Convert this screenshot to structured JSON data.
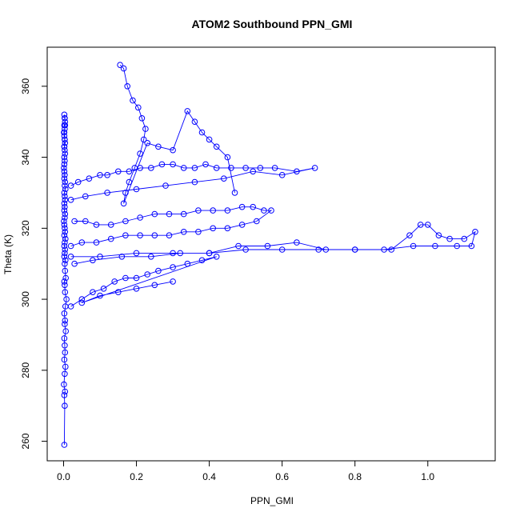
{
  "chart_data": {
    "type": "line",
    "title": "ATOM2 Southbound PPN_GMI",
    "xlabel": "PPN_GMI",
    "ylabel": "Theta (K)",
    "xlim": [
      -0.045,
      1.185
    ],
    "ylim": [
      254.5,
      371
    ],
    "xticks": [
      0.0,
      0.2,
      0.4,
      0.6,
      0.8,
      1.0
    ],
    "xtick_labels": [
      "0.0",
      "0.2",
      "0.4",
      "0.6",
      "0.8",
      "1.0"
    ],
    "yticks": [
      260,
      280,
      300,
      320,
      340,
      360
    ],
    "ytick_labels": [
      "260",
      "280",
      "300",
      "320",
      "340",
      "360"
    ],
    "grid": false,
    "legend": "none",
    "series_color": "#0000ff",
    "marker": "open-circle",
    "series": [
      {
        "x": [
          0.002,
          0.003,
          0.002,
          0.004,
          0.001,
          0.003,
          0.005,
          0.002,
          0.004,
          0.003,
          0.002,
          0.006,
          0.003,
          0.004,
          0.002,
          0.005,
          0.008,
          0.004,
          0.003,
          0.002,
          0.006,
          0.004,
          0.003,
          0.005,
          0.002,
          0.003,
          0.004,
          0.002,
          0.003,
          0.005,
          0.002,
          0.004,
          0.003,
          0.002,
          0.001,
          0.003,
          0.004,
          0.002,
          0.003,
          0.002,
          0.004,
          0.003,
          0.002,
          0.005,
          0.003,
          0.004,
          0.002,
          0.003,
          0.002,
          0.001,
          0.002,
          0.003,
          0.002,
          0.004,
          0.003,
          0.002,
          0.004,
          0.003,
          0.002,
          0.001,
          0.003,
          0.002,
          0.004,
          0.003,
          0.002,
          0.003,
          0.004,
          0.002,
          0.003,
          0.002
        ],
        "y": [
          259,
          270,
          273,
          274,
          276,
          279,
          281,
          283,
          285,
          287,
          289,
          291,
          293,
          294,
          296,
          298,
          300,
          302,
          304,
          305,
          306,
          308,
          310,
          311,
          312,
          313,
          314,
          315,
          316,
          317,
          318,
          319,
          320,
          321,
          322,
          323,
          324,
          325,
          326,
          327,
          328,
          329,
          330,
          331,
          332,
          333,
          334,
          335,
          336,
          337,
          338,
          339,
          340,
          341,
          342,
          343,
          344,
          345,
          346,
          347,
          348,
          349,
          350,
          351,
          352,
          351,
          349,
          347,
          345,
          343
        ]
      },
      {
        "x": [
          0.02,
          0.04,
          0.07,
          0.1,
          0.12,
          0.15,
          0.18,
          0.21,
          0.24,
          0.27,
          0.3,
          0.33,
          0.36,
          0.39,
          0.42,
          0.46,
          0.5,
          0.54,
          0.58,
          0.64,
          0.69,
          0.6,
          0.52,
          0.44,
          0.36,
          0.28,
          0.2,
          0.12,
          0.06,
          0.02
        ],
        "y": [
          332,
          333,
          334,
          335,
          335,
          336,
          336,
          337,
          337,
          338,
          338,
          337,
          337,
          338,
          337,
          337,
          337,
          337,
          337,
          336,
          337,
          335,
          336,
          334,
          333,
          332,
          331,
          330,
          329,
          328
        ]
      },
      {
        "x": [
          0.03,
          0.06,
          0.09,
          0.13,
          0.17,
          0.21,
          0.25,
          0.29,
          0.33,
          0.37,
          0.41,
          0.45,
          0.49,
          0.52,
          0.55,
          0.57,
          0.53,
          0.49,
          0.45,
          0.41,
          0.37,
          0.33,
          0.29,
          0.25,
          0.21,
          0.17,
          0.13,
          0.09,
          0.05,
          0.02
        ],
        "y": [
          322,
          322,
          321,
          321,
          322,
          323,
          324,
          324,
          324,
          325,
          325,
          325,
          326,
          326,
          325,
          325,
          322,
          321,
          320,
          320,
          319,
          319,
          318,
          318,
          318,
          318,
          317,
          316,
          316,
          315
        ]
      },
      {
        "x": [
          0.02,
          0.1,
          0.2,
          0.3,
          0.4,
          0.5,
          0.6,
          0.7,
          0.8,
          0.9,
          0.95,
          0.98,
          1.0,
          1.03,
          1.06,
          1.1,
          1.13,
          1.12,
          1.08,
          1.02,
          0.96,
          0.88,
          0.8,
          0.72,
          0.64,
          0.56,
          0.48,
          0.4,
          0.32,
          0.24,
          0.16,
          0.08,
          0.03
        ],
        "y": [
          312,
          312,
          313,
          313,
          313,
          314,
          314,
          314,
          314,
          314,
          318,
          321,
          321,
          318,
          317,
          317,
          319,
          315,
          315,
          315,
          315,
          314,
          314,
          314,
          316,
          315,
          315,
          313,
          313,
          312,
          312,
          311,
          310
        ]
      },
      {
        "x": [
          0.155,
          0.165,
          0.175,
          0.19,
          0.205,
          0.215,
          0.225,
          0.22,
          0.21,
          0.195,
          0.18,
          0.17,
          0.165,
          0.23,
          0.26,
          0.3,
          0.34,
          0.36,
          0.38,
          0.4,
          0.42,
          0.45,
          0.47
        ],
        "y": [
          366,
          365,
          360,
          356,
          354,
          351,
          348,
          345,
          341,
          337,
          333,
          330,
          327,
          344,
          343,
          342,
          353,
          350,
          347,
          345,
          343,
          340,
          330
        ]
      },
      {
        "x": [
          0.02,
          0.05,
          0.08,
          0.11,
          0.14,
          0.17,
          0.2,
          0.23,
          0.26,
          0.3,
          0.34,
          0.38,
          0.42,
          0.05,
          0.1,
          0.15,
          0.2,
          0.25,
          0.3
        ],
        "y": [
          298,
          300,
          302,
          303,
          305,
          306,
          306,
          307,
          308,
          309,
          310,
          311,
          312,
          299,
          301,
          302,
          303,
          304,
          305
        ]
      }
    ]
  }
}
